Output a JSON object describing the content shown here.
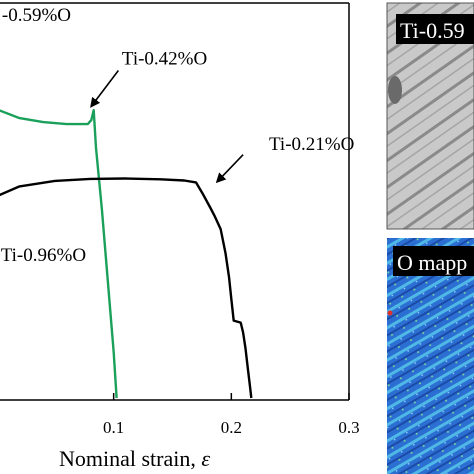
{
  "chart_data": {
    "type": "line",
    "xlabel": "Nominal strain, ",
    "xlabel_symbol": "ε",
    "ylabel": "",
    "xlim": [
      -0.0,
      0.3
    ],
    "xticks": [
      {
        "value": 0.1,
        "label": "0.1"
      },
      {
        "value": 0.2,
        "label": "0.2"
      },
      {
        "value": 0.3,
        "label": "0.3"
      }
    ],
    "grid": false,
    "series": [
      {
        "name": "Ti-0.42%O",
        "color": "#1aa05a",
        "points": [
          [
            -0.002,
            0.265
          ],
          [
            0.02,
            0.29
          ],
          [
            0.04,
            0.3
          ],
          [
            0.06,
            0.305
          ],
          [
            0.078,
            0.305
          ],
          [
            0.081,
            0.295
          ],
          [
            0.083,
            0.27
          ],
          [
            0.085,
            0.365
          ],
          [
            0.09,
            0.52
          ],
          [
            0.095,
            0.7
          ],
          [
            0.1,
            0.88
          ],
          [
            0.1025,
            0.995
          ]
        ]
      },
      {
        "name": "Ti-0.21%O",
        "color": "#000000",
        "points": [
          [
            -0.002,
            0.49
          ],
          [
            0.02,
            0.462
          ],
          [
            0.05,
            0.448
          ],
          [
            0.08,
            0.443
          ],
          [
            0.11,
            0.442
          ],
          [
            0.14,
            0.444
          ],
          [
            0.16,
            0.447
          ],
          [
            0.17,
            0.452
          ],
          [
            0.176,
            0.482
          ],
          [
            0.182,
            0.515
          ],
          [
            0.186,
            0.538
          ],
          [
            0.191,
            0.57
          ],
          [
            0.195,
            0.63
          ],
          [
            0.198,
            0.69
          ],
          [
            0.2,
            0.745
          ],
          [
            0.202,
            0.8
          ],
          [
            0.208,
            0.805
          ],
          [
            0.21,
            0.83
          ],
          [
            0.212,
            0.87
          ],
          [
            0.214,
            0.92
          ],
          [
            0.216,
            0.97
          ],
          [
            0.217,
            0.995
          ]
        ]
      }
    ],
    "labels": [
      {
        "text": "-0.59%O",
        "x": 0.005,
        "y": 0.045
      },
      {
        "text": "Ti-0.42%O",
        "x": 0.107,
        "y": 0.155
      },
      {
        "text": "Ti-0.21%O",
        "x": 0.232,
        "y": 0.37
      },
      {
        "text": "Ti-0.96%O",
        "x": 0.004,
        "y": 0.65
      }
    ],
    "arrows": [
      {
        "from": [
          0.104,
          0.17
        ],
        "to": [
          0.081,
          0.26
        ]
      },
      {
        "from": [
          0.21,
          0.382
        ],
        "to": [
          0.188,
          0.45
        ]
      }
    ]
  },
  "panels": {
    "micrograph_label": "Ti-0.59",
    "mapping_label": "O mapp"
  }
}
